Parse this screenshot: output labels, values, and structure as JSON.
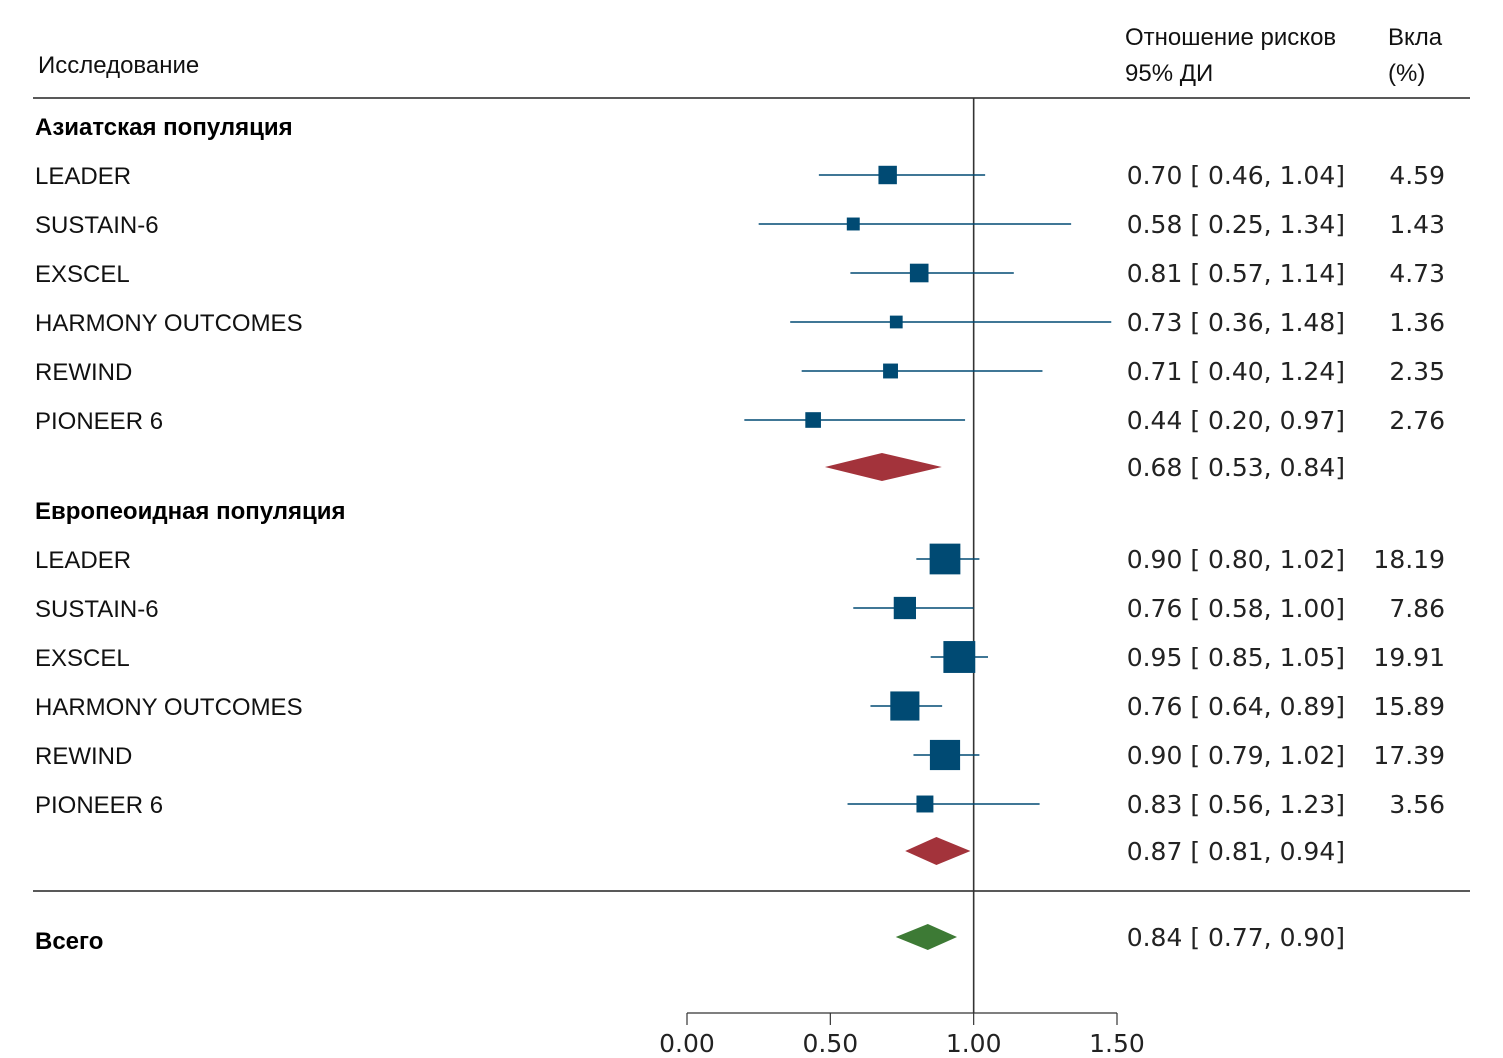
{
  "header": {
    "study": "Исследование",
    "effect_line1": "Отношение рисков",
    "effect_line2": "95% ДИ",
    "weight_line1": "Вкла",
    "weight_line2": "(%)"
  },
  "colors": {
    "study_marker": "#004a73",
    "subgroup_diamond": "#a3333b",
    "overall_diamond": "#3d7a35",
    "reference_line": "#333333"
  },
  "chart_data": {
    "type": "forest",
    "x_ticks": [
      "0.00",
      "0.50",
      "1.00",
      "1.50"
    ],
    "xlim": [
      0,
      1.5
    ],
    "reference_value": 1.0,
    "groups": [
      {
        "name": "Азиатская популяция",
        "studies": [
          {
            "name": "LEADER",
            "est": 0.7,
            "lo": 0.46,
            "hi": 1.04,
            "weight": "4.59"
          },
          {
            "name": "SUSTAIN-6",
            "est": 0.58,
            "lo": 0.25,
            "hi": 1.34,
            "weight": "1.43"
          },
          {
            "name": "EXSCEL",
            "est": 0.81,
            "lo": 0.57,
            "hi": 1.14,
            "weight": "4.73"
          },
          {
            "name": "HARMONY OUTCOMES",
            "est": 0.73,
            "lo": 0.36,
            "hi": 1.48,
            "weight": "1.36"
          },
          {
            "name": "REWIND",
            "est": 0.71,
            "lo": 0.4,
            "hi": 1.24,
            "weight": "2.35"
          },
          {
            "name": "PIONEER 6",
            "est": 0.44,
            "lo": 0.2,
            "hi": 0.97,
            "weight": "2.76"
          }
        ],
        "pooled": {
          "est": 0.68,
          "lo": 0.53,
          "hi": 0.84
        }
      },
      {
        "name": "Европеоидная популяция",
        "studies": [
          {
            "name": "LEADER",
            "est": 0.9,
            "lo": 0.8,
            "hi": 1.02,
            "weight": "18.19"
          },
          {
            "name": "SUSTAIN-6",
            "est": 0.76,
            "lo": 0.58,
            "hi": 1.0,
            "weight": "7.86"
          },
          {
            "name": "EXSCEL",
            "est": 0.95,
            "lo": 0.85,
            "hi": 1.05,
            "weight": "19.91"
          },
          {
            "name": "HARMONY OUTCOMES",
            "est": 0.76,
            "lo": 0.64,
            "hi": 0.89,
            "weight": "15.89"
          },
          {
            "name": "REWIND",
            "est": 0.9,
            "lo": 0.79,
            "hi": 1.02,
            "weight": "17.39"
          },
          {
            "name": "PIONEER 6",
            "est": 0.83,
            "lo": 0.56,
            "hi": 1.23,
            "weight": "3.56"
          }
        ],
        "pooled": {
          "est": 0.87,
          "lo": 0.81,
          "hi": 0.94
        }
      }
    ],
    "overall": {
      "name": "Всего",
      "est": 0.84,
      "lo": 0.77,
      "hi": 0.9
    }
  }
}
